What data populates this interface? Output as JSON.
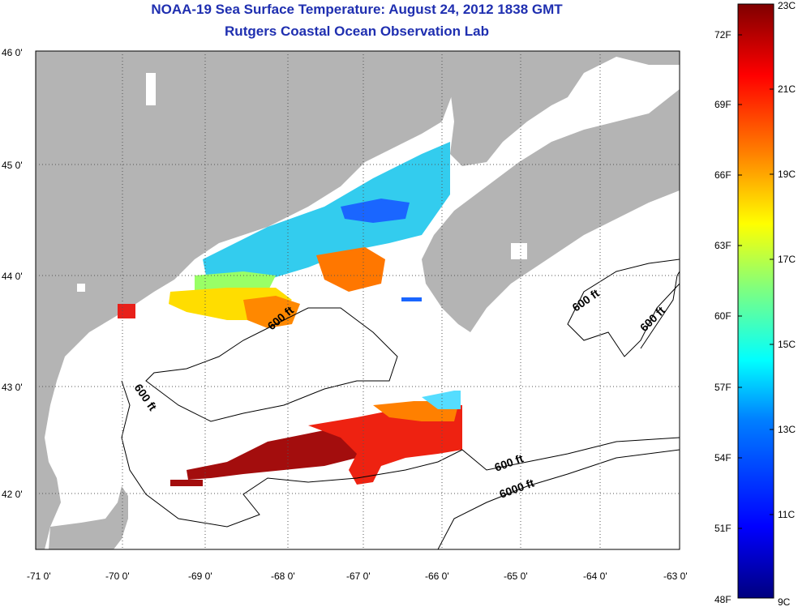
{
  "header": {
    "title_line1": "NOAA-19 Sea Surface Temperature:  August 24, 2012 1838 GMT",
    "title_line2": "Rutgers Coastal Ocean Observation Lab"
  },
  "map": {
    "lat_labels": [
      "46 0'",
      "45 0'",
      "44 0'",
      "43 0'",
      "42 0'"
    ],
    "lon_labels": [
      "-71 0'",
      "-70 0'",
      "-69 0'",
      "-68 0'",
      "-67 0'",
      "-66 0'",
      "-65 0'",
      "-64 0'",
      "-63 0'"
    ],
    "contour_labels": [
      "600 ft",
      "600 ft",
      "600 ft",
      "600 ft",
      "600 ft",
      "6000 ft"
    ],
    "land_color": "#b4b4b4",
    "ocean_color": "#ffffff"
  },
  "colorbar": {
    "fahrenheit_labels": [
      "72F",
      "69F",
      "66F",
      "63F",
      "60F",
      "57F",
      "54F",
      "51F",
      "48F"
    ],
    "celsius_labels": [
      "23C",
      "21C",
      "19C",
      "17C",
      "15C",
      "13C",
      "11C",
      "9C"
    ],
    "colors": [
      "#00007f",
      "#0000ff",
      "#007fff",
      "#00ffff",
      "#7fff7f",
      "#ffff00",
      "#ff7f00",
      "#ff0000",
      "#7f0000"
    ]
  }
}
